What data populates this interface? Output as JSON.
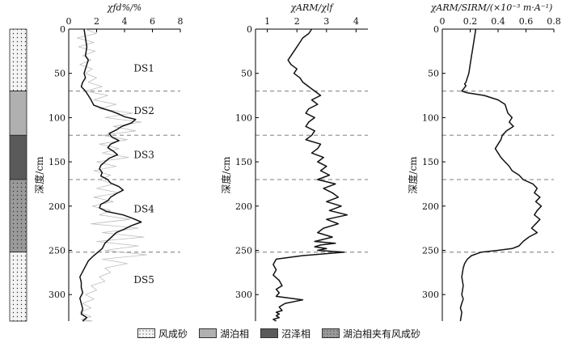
{
  "legend": [
    {
      "label": "风成砂",
      "fill": "#f4f4f4",
      "pattern": "dots"
    },
    {
      "label": "湖泊相",
      "fill": "#b0b0b0",
      "pattern": "none"
    },
    {
      "label": "沼泽相",
      "fill": "#5a5a5a",
      "pattern": "none"
    },
    {
      "label": "湖泊相夹有风成砂",
      "fill": "#9a9a9a",
      "pattern": "dots"
    }
  ],
  "colors": {
    "axis": "#000000",
    "line": "#111111",
    "raw_line": "#bdbdbd",
    "boundary": "#999999"
  },
  "chart_data": [
    {
      "type": "line",
      "title": "",
      "xlabel": "χfd%/%",
      "ylabel": "深度/cm",
      "xlim": [
        0,
        8
      ],
      "ylim": [
        0,
        330
      ],
      "x_ticks": [
        0,
        2,
        4,
        6,
        8
      ],
      "y_ticks": [
        0,
        50,
        100,
        150,
        200,
        250,
        300
      ],
      "boundaries": [
        70,
        120,
        170,
        252
      ],
      "annotations": [
        {
          "text": "DS1",
          "x": 5.4,
          "y": 48
        },
        {
          "text": "DS2",
          "x": 5.4,
          "y": 96
        },
        {
          "text": "DS3",
          "x": 5.4,
          "y": 146
        },
        {
          "text": "DS4",
          "x": 5.4,
          "y": 207
        },
        {
          "text": "DS5",
          "x": 5.4,
          "y": 287
        }
      ],
      "series": [
        {
          "role": "raw",
          "x": [
            1.2,
            2.0,
            0.6,
            1.8,
            0.7,
            1.9,
            1.0,
            1.6,
            0.8,
            1.7,
            1.2,
            2.0,
            1.4,
            2.4,
            1.2,
            2.8,
            1.8,
            3.4,
            2.2,
            4.6,
            2.6,
            5.2,
            3.2,
            4.8,
            2.4,
            4.2,
            2.2,
            3.6,
            2.4,
            4.3,
            2.0,
            3.4,
            1.8,
            3.0,
            2.2,
            3.2,
            2.0,
            3.6,
            1.8,
            3.2,
            1.7,
            3.0,
            2.2,
            4.4,
            1.6,
            5.0,
            2.4,
            5.4,
            2.0,
            5.0,
            2.6,
            5.6,
            2.4,
            4.2,
            2.6,
            3.0,
            2.2,
            2.6,
            1.6,
            2.0,
            1.2,
            1.8,
            1.0,
            1.6,
            0.8,
            1.6,
            0.9,
            1.7,
            1.3,
            1.0
          ],
          "y": [
            0,
            5,
            10,
            15,
            20,
            25,
            30,
            35,
            40,
            45,
            50,
            55,
            60,
            65,
            70,
            75,
            80,
            85,
            90,
            95,
            100,
            105,
            110,
            115,
            120,
            125,
            130,
            135,
            140,
            145,
            150,
            155,
            160,
            165,
            170,
            175,
            180,
            185,
            190,
            195,
            200,
            205,
            210,
            215,
            220,
            225,
            230,
            235,
            240,
            245,
            250,
            255,
            260,
            265,
            270,
            275,
            280,
            285,
            290,
            295,
            300,
            305,
            310,
            315,
            320,
            325,
            328,
            330,
            330,
            330
          ]
        },
        {
          "role": "smoothed",
          "x": [
            1.1,
            1.2,
            1.3,
            1.2,
            1.4,
            1.3,
            1.2,
            1.1,
            1.2,
            1.0,
            0.9,
            1.2,
            1.4,
            1.6,
            1.7,
            1.8,
            2.5,
            3.1,
            3.6,
            4.0,
            4.8,
            4.5,
            3.8,
            3.4,
            2.9,
            3.1,
            3.6,
            3.0,
            2.8,
            3.2,
            3.5,
            2.9,
            2.6,
            2.3,
            2.2,
            2.4,
            2.3,
            2.8,
            3.0,
            3.6,
            3.9,
            3.4,
            3.0,
            2.8,
            2.3,
            2.2,
            2.7,
            3.9,
            4.6,
            5.2,
            4.5,
            4.0,
            3.4,
            3.0,
            2.6,
            2.4,
            2.1,
            1.8,
            1.4,
            1.2,
            1.0,
            0.8,
            0.9,
            0.9,
            1.0,
            0.8,
            0.9,
            1.0,
            0.9,
            1.3,
            1.0
          ],
          "y": [
            0,
            10,
            20,
            30,
            35,
            40,
            45,
            50,
            55,
            60,
            65,
            70,
            75,
            80,
            83,
            86,
            90,
            93,
            96,
            99,
            102,
            106,
            110,
            114,
            118,
            122,
            126,
            130,
            134,
            138,
            142,
            146,
            150,
            154,
            158,
            162,
            166,
            170,
            174,
            178,
            182,
            186,
            190,
            194,
            198,
            202,
            206,
            210,
            214,
            218,
            222,
            226,
            230,
            236,
            242,
            248,
            252,
            256,
            262,
            268,
            274,
            280,
            286,
            292,
            298,
            304,
            310,
            316,
            322,
            326,
            330
          ]
        }
      ]
    },
    {
      "type": "line",
      "title": "",
      "xlabel": "χARM/χlf",
      "ylabel": "深度/cm",
      "xlim": [
        0.6,
        4.4
      ],
      "ylim": [
        0,
        330
      ],
      "x_ticks": [
        1,
        2,
        3,
        4
      ],
      "y_ticks": [
        0,
        50,
        100,
        150,
        200,
        250,
        300
      ],
      "boundaries": [
        70,
        120,
        170,
        252
      ],
      "series": [
        {
          "role": "smoothed",
          "x": [
            2.5,
            2.4,
            2.2,
            2.1,
            2.0,
            1.9,
            1.8,
            1.7,
            1.8,
            2.0,
            1.9,
            2.1,
            2.2,
            2.4,
            2.6,
            2.8,
            2.5,
            2.7,
            2.4,
            2.3,
            2.6,
            2.4,
            2.3,
            2.6,
            2.5,
            2.3,
            2.8,
            2.7,
            2.5,
            2.9,
            2.7,
            3.0,
            2.8,
            3.1,
            2.7,
            3.3,
            2.9,
            3.2,
            3.4,
            3.0,
            3.5,
            3.1,
            3.7,
            3.0,
            3.4,
            2.9,
            2.7,
            3.2,
            2.6,
            3.3,
            2.8,
            2.6,
            3.0,
            2.7,
            3.6,
            2.2,
            1.3,
            1.2,
            1.3,
            1.2,
            1.4,
            1.5,
            1.3,
            1.4,
            1.3,
            2.2,
            1.6,
            1.4,
            1.5,
            1.3,
            1.4,
            1.3,
            1.4,
            1.2,
            1.3
          ],
          "y": [
            0,
            5,
            10,
            15,
            20,
            25,
            30,
            35,
            40,
            45,
            50,
            55,
            60,
            65,
            70,
            75,
            80,
            85,
            90,
            95,
            100,
            105,
            110,
            115,
            120,
            125,
            130,
            135,
            140,
            145,
            150,
            155,
            160,
            165,
            170,
            175,
            180,
            185,
            190,
            195,
            200,
            205,
            210,
            215,
            220,
            225,
            230,
            235,
            240,
            242,
            244,
            246,
            248,
            250,
            252,
            256,
            260,
            266,
            272,
            278,
            284,
            290,
            294,
            298,
            302,
            306,
            310,
            314,
            318,
            320,
            322,
            324,
            326,
            328,
            330
          ]
        }
      ]
    },
    {
      "type": "line",
      "title": "",
      "xlabel": "χARM/SIRM/(×10⁻³ m·A⁻¹)",
      "ylabel": "深度/cm",
      "xlim": [
        0,
        0.8
      ],
      "ylim": [
        0,
        330
      ],
      "x_ticks": [
        0,
        0.2,
        0.4,
        0.6,
        0.8
      ],
      "y_ticks": [
        0,
        50,
        100,
        150,
        200,
        250,
        300
      ],
      "boundaries": [
        70,
        120,
        170,
        252
      ],
      "series": [
        {
          "role": "smoothed",
          "x": [
            0.24,
            0.23,
            0.22,
            0.21,
            0.2,
            0.19,
            0.18,
            0.17,
            0.16,
            0.17,
            0.16,
            0.15,
            0.14,
            0.18,
            0.3,
            0.4,
            0.45,
            0.46,
            0.47,
            0.5,
            0.48,
            0.51,
            0.46,
            0.43,
            0.42,
            0.4,
            0.38,
            0.4,
            0.42,
            0.45,
            0.48,
            0.5,
            0.55,
            0.58,
            0.65,
            0.68,
            0.66,
            0.7,
            0.67,
            0.71,
            0.68,
            0.66,
            0.7,
            0.67,
            0.64,
            0.68,
            0.62,
            0.58,
            0.55,
            0.5,
            0.4,
            0.28,
            0.21,
            0.18,
            0.16,
            0.15,
            0.14,
            0.15,
            0.14,
            0.15,
            0.14,
            0.13,
            0.14,
            0.13
          ],
          "y": [
            0,
            10,
            20,
            30,
            40,
            50,
            55,
            60,
            62,
            64,
            66,
            68,
            70,
            72,
            75,
            80,
            85,
            90,
            95,
            100,
            105,
            110,
            115,
            120,
            125,
            130,
            135,
            140,
            145,
            150,
            155,
            160,
            165,
            170,
            175,
            180,
            185,
            190,
            195,
            200,
            205,
            210,
            215,
            220,
            225,
            230,
            235,
            240,
            245,
            248,
            250,
            252,
            256,
            260,
            265,
            270,
            280,
            290,
            300,
            305,
            310,
            315,
            320,
            330
          ]
        }
      ]
    }
  ]
}
